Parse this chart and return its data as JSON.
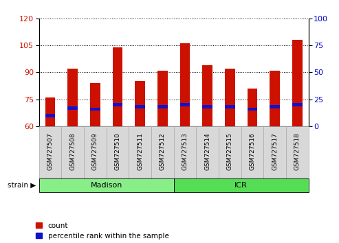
{
  "samples": [
    "GSM727507",
    "GSM727508",
    "GSM727509",
    "GSM727510",
    "GSM727511",
    "GSM727512",
    "GSM727513",
    "GSM727514",
    "GSM727515",
    "GSM727516",
    "GSM727517",
    "GSM727518"
  ],
  "count_values": [
    76,
    92,
    84,
    104,
    85,
    91,
    106,
    94,
    92,
    81,
    91,
    108
  ],
  "percentile_values": [
    10,
    17,
    16,
    20,
    18,
    18,
    20,
    18,
    18,
    16,
    18,
    20
  ],
  "ylim_left": [
    60,
    120
  ],
  "ylim_right": [
    0,
    100
  ],
  "yticks_left": [
    60,
    75,
    90,
    105,
    120
  ],
  "yticks_right": [
    0,
    25,
    50,
    75,
    100
  ],
  "bar_color_red": "#cc1100",
  "bar_color_blue": "#1111cc",
  "bar_width": 0.45,
  "groups": [
    {
      "label": "Madison",
      "start": 0,
      "end": 6,
      "color": "#88ee88"
    },
    {
      "label": "ICR",
      "start": 6,
      "end": 12,
      "color": "#55dd55"
    }
  ],
  "group_row_label": "strain",
  "legend_count": "count",
  "legend_pct": "percentile rank within the sample",
  "bg_color": "#ffffff",
  "plot_bg": "#ffffff",
  "tick_label_color_left": "#cc1100",
  "tick_label_color_right": "#0000cc",
  "sample_box_color": "#d8d8d8"
}
